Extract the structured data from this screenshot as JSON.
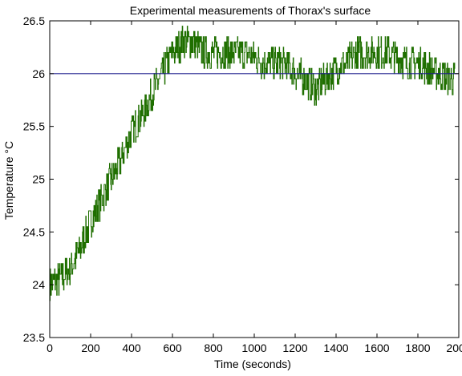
{
  "chart_data": {
    "type": "line",
    "title": "Experimental measurements of Thorax's surface",
    "xlabel": "Time (seconds)",
    "ylabel": "Temperature °C",
    "xlim": [
      0,
      2000
    ],
    "ylim": [
      23.5,
      26.5
    ],
    "xticks": [
      "0",
      "200",
      "400",
      "600",
      "800",
      "1000",
      "1200",
      "1400",
      "1600",
      "1800",
      "2000"
    ],
    "yticks": [
      "23.5",
      "24",
      "24.5",
      "25",
      "25.5",
      "26",
      "26.5"
    ],
    "grid": false,
    "series": [
      {
        "color": "#1f6f00",
        "style": "noisy-step",
        "x": [
          0,
          50,
          100,
          150,
          200,
          250,
          300,
          350,
          400,
          450,
          500,
          550,
          600,
          650,
          700,
          750,
          800,
          850,
          900,
          950,
          1000,
          1050,
          1100,
          1150,
          1200,
          1250,
          1300,
          1350,
          1400,
          1450,
          1500,
          1550,
          1600,
          1650,
          1700,
          1750,
          1800,
          1850,
          1900,
          1950,
          1980
        ],
        "y": [
          24.0,
          24.05,
          24.15,
          24.35,
          24.6,
          24.8,
          25.0,
          25.2,
          25.45,
          25.6,
          25.8,
          26.0,
          26.2,
          26.3,
          26.3,
          26.2,
          26.2,
          26.2,
          26.2,
          26.2,
          26.15,
          26.1,
          26.1,
          26.1,
          26.0,
          25.95,
          25.85,
          25.95,
          26.05,
          26.1,
          26.2,
          26.2,
          26.2,
          26.2,
          26.15,
          26.1,
          26.1,
          26.05,
          26.0,
          25.95,
          25.95
        ]
      },
      {
        "color": "#1a1a8c",
        "style": "line",
        "x": [
          0,
          2000
        ],
        "y": [
          26.0,
          26.0
        ]
      }
    ]
  }
}
